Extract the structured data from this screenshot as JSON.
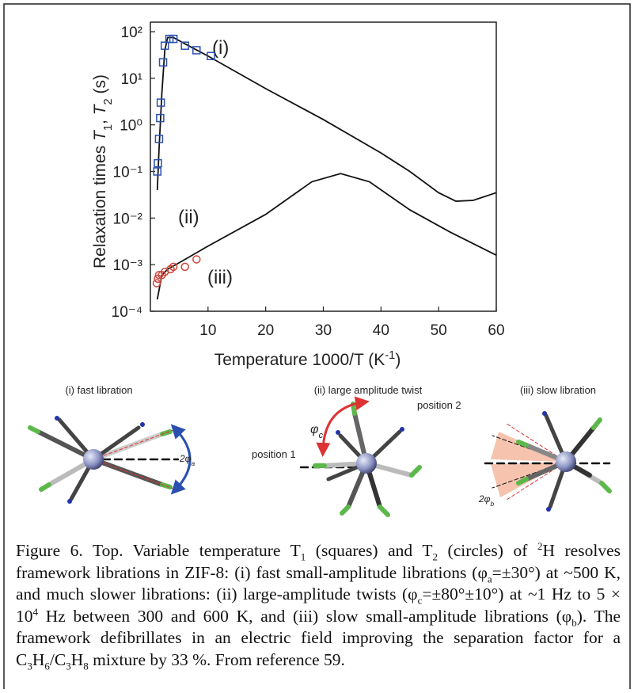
{
  "chart_data": {
    "type": "line",
    "x_label": [
      {
        "t": "Temperature 1000/T (K"
      },
      {
        "sup": "-1"
      },
      {
        "t": ")"
      }
    ],
    "y_label": [
      {
        "t": "Relaxation times "
      },
      {
        "i": "T"
      },
      {
        "sub": "1"
      },
      {
        "t": ", "
      },
      {
        "i": "T"
      },
      {
        "sub": "2"
      },
      {
        "t": " (s)"
      }
    ],
    "annotations": [
      "(i)",
      "(ii)",
      "(iii)"
    ],
    "xlim": [
      0,
      60
    ],
    "xticks": [
      10,
      20,
      30,
      40,
      50,
      60
    ],
    "ylim": [
      0.0001,
      100
    ],
    "log_y": true,
    "yticks": [
      {
        "value": 100,
        "label": "10²"
      },
      {
        "value": 10,
        "label": "10¹"
      },
      {
        "value": 1,
        "label": "10⁰"
      },
      {
        "value": 0.1,
        "label": "10⁻¹"
      },
      {
        "value": 0.01,
        "label": "10⁻²"
      },
      {
        "value": 0.001,
        "label": "10⁻³"
      },
      {
        "value": 0.0001,
        "label": "10⁻⁴"
      }
    ],
    "series": [
      {
        "marker": "line",
        "color": "#111111",
        "x": [
          1.2,
          1.5,
          2,
          2.5,
          3,
          4,
          6,
          10,
          20,
          30,
          40,
          45,
          50,
          53,
          56,
          60
        ],
        "values": [
          0.04,
          0.3,
          5,
          40,
          75,
          75,
          55,
          30,
          6,
          1.3,
          0.25,
          0.1,
          0.035,
          0.023,
          0.024,
          0.035
        ]
      },
      {
        "marker": "line",
        "color": "#111111",
        "x": [
          1.2,
          2,
          3,
          5,
          10,
          20,
          28,
          33,
          38,
          45,
          52,
          60
        ],
        "values": [
          0.00018,
          0.0006,
          0.0008,
          0.0011,
          0.0025,
          0.012,
          0.06,
          0.09,
          0.06,
          0.015,
          0.005,
          0.0016
        ]
      },
      {
        "marker": "square",
        "color": "#2b4fb0",
        "x": [
          1.2,
          1.3,
          1.5,
          1.7,
          1.8,
          2.2,
          2.5,
          3.3,
          4,
          6,
          8,
          10.5
        ],
        "values": [
          0.1,
          0.15,
          0.5,
          1.4,
          3,
          22,
          50,
          70,
          70,
          50,
          40,
          30
        ]
      },
      {
        "marker": "circle",
        "color": "#d0463c",
        "x": [
          1.1,
          1.3,
          1.5,
          2,
          2.5,
          3.5,
          4,
          6,
          8
        ],
        "values": [
          0.0004,
          0.0005,
          0.0006,
          0.0006,
          0.0007,
          0.0008,
          0.0009,
          0.0009,
          0.0013
        ]
      }
    ]
  },
  "diagrams": {
    "panels": [
      {
        "label": "(i) fast libration",
        "angle": [
          {
            "t": "2φ"
          },
          {
            "sub": "a"
          }
        ]
      },
      {
        "label": "(ii) large amplitude twist",
        "angle": [
          {
            "t": "φ"
          },
          {
            "sub": "c"
          }
        ],
        "position_2": "position 2",
        "position_1": "position 1"
      },
      {
        "label": "(iii) slow libration",
        "angle": [
          {
            "t": "2φ"
          },
          {
            "sub": "b"
          }
        ]
      }
    ]
  },
  "caption": [
    {
      "t": "Figure 6. Top. Variable temperature T"
    },
    {
      "sub": "1"
    },
    {
      "t": " (squares) and T"
    },
    {
      "sub": "2"
    },
    {
      "t": " (circles) of "
    },
    {
      "sup": "2"
    },
    {
      "t": "H resolves framework librations in ZIF-8: (i) fast small-amplitude librations (φ"
    },
    {
      "sub": "a"
    },
    {
      "t": "=±30°) at ~500 K, and much slower librations: (ii) large-amplitude twists (φ"
    },
    {
      "sub": "c"
    },
    {
      "t": "=±80°±10°) at ~1 Hz to 5 × 10"
    },
    {
      "sup": "4"
    },
    {
      "t": " Hz between 300 and 600 K, and (iii) slow small-amplitude librations (φ"
    },
    {
      "sub": "b"
    },
    {
      "t": "). The framework defibrillates in an electric field improving the separation factor for a C"
    },
    {
      "sub": "3"
    },
    {
      "t": "H"
    },
    {
      "sub": "6"
    },
    {
      "t": "/C"
    },
    {
      "sub": "3"
    },
    {
      "t": "H"
    },
    {
      "sub": "8"
    },
    {
      "t": " mixture by 33 %. From reference 59."
    }
  ]
}
